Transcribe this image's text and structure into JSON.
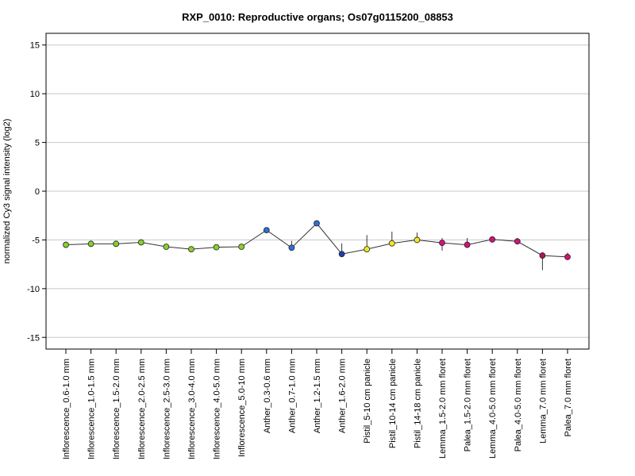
{
  "chart_data": {
    "type": "line",
    "title": "RXP_0010: Reproductive organs; Os07g0115200_08853",
    "ylabel": "normalized Cy3 signal intensity (log2)",
    "xlabel": "",
    "ylim": [
      -16.2,
      16.2
    ],
    "yticks": [
      -15,
      -10,
      -5,
      0,
      5,
      10,
      15
    ],
    "grid": true,
    "categories": [
      "Inflorescence_0.6-1.0 mm",
      "Inflorescence_1.0-1.5 mm",
      "Inflorescence_1.5-2.0 mm",
      "Inflorescence_2.0-2.5 mm",
      "Inflorescence_2.5-3.0 mm",
      "Inflorescence_3.0-4.0 mm",
      "Inflorescence_4.0-5.0 mm",
      "Inflorescence_5.0-10 mm",
      "Anther_0.3-0.6 mm",
      "Anther_0.7-1.0 mm",
      "Anther_1.2-1.5 mm",
      "Anther_1.6-2.0 mm",
      "Pistil_5-10 cm panicle",
      "Pistil_10-14 cm panicle",
      "Pistil_14-18 cm panicle",
      "Lemma_1.5-2.0 mm floret",
      "Palea_1.5-2.0 mm floret",
      "Lemma_4.0-5.0 mm floret",
      "Palea_4.0-5.0 mm floret",
      "Lemma_7.0 mm floret",
      "Palea_7.0 mm floret"
    ],
    "values": [
      -5.5,
      -5.4,
      -5.4,
      -5.25,
      -5.7,
      -5.95,
      -5.75,
      -5.7,
      -4.0,
      -5.8,
      -3.3,
      -6.45,
      -5.95,
      -5.35,
      -5.0,
      -5.3,
      -5.5,
      -4.95,
      -5.15,
      -6.6,
      -6.75
    ],
    "error_low": [
      -5.8,
      -5.6,
      -5.55,
      -5.4,
      -5.85,
      -6.1,
      -5.9,
      -5.85,
      -4.15,
      -6.0,
      -3.45,
      -6.7,
      -6.25,
      -5.65,
      -5.3,
      -6.1,
      -5.8,
      -5.2,
      -5.3,
      -8.1,
      -6.95
    ],
    "error_high": [
      -5.2,
      -5.2,
      -5.25,
      -5.1,
      -5.55,
      -5.8,
      -5.6,
      -5.55,
      -3.85,
      -5.1,
      -3.15,
      -5.35,
      -4.5,
      -4.15,
      -4.25,
      -4.8,
      -4.8,
      -4.7,
      -4.8,
      -6.35,
      -6.3
    ],
    "point_colors": [
      "#88d02a",
      "#88d02a",
      "#88d02a",
      "#88d02a",
      "#88d02a",
      "#88d02a",
      "#88d02a",
      "#88d02a",
      "#2f6fd6",
      "#2f6fd6",
      "#2f6fd6",
      "#1e3fa8",
      "#f2e81e",
      "#f2e81e",
      "#f2e81e",
      "#d8107a",
      "#d8107a",
      "#d8107a",
      "#d8107a",
      "#b5105e",
      "#d8107a"
    ]
  }
}
